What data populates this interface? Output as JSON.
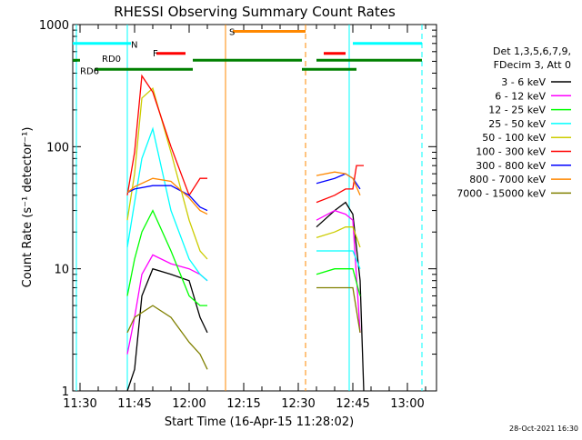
{
  "chart_data": {
    "type": "line",
    "title": "RHESSI Observing Summary Count Rates",
    "xlabel": "Start Time (16-Apr-15 11:28:02)",
    "ylabel": "Count Rate (s⁻¹ detector⁻¹)",
    "yscale": "log",
    "xlim": [
      "11:28",
      "13:08"
    ],
    "ylim": [
      1,
      1000
    ],
    "xticks": [
      "11:30",
      "11:45",
      "12:00",
      "12:15",
      "12:30",
      "12:45",
      "13:00"
    ],
    "yticks": [
      "1",
      "10",
      "100",
      "1000"
    ],
    "legend_position": "right",
    "legend_header": [
      "Det 1,3,5,6,7,9,",
      "FDecim 3, Att 0"
    ],
    "timestamp": "28-Oct-2021 16:30",
    "series": [
      {
        "name": "3 - 6 keV",
        "color": "#000000",
        "x": [
          "11:43",
          "11:45",
          "11:47",
          "11:50",
          "11:55",
          "12:00",
          "12:03",
          "12:05"
        ],
        "y": [
          1,
          1.5,
          6,
          10,
          9,
          8,
          4,
          3
        ],
        "x2": [
          "12:35",
          "12:40",
          "12:43",
          "12:45",
          "12:47",
          "12:48"
        ],
        "y2": [
          22,
          30,
          35,
          28,
          8,
          1
        ]
      },
      {
        "name": "6 - 12 keV",
        "color": "#ff00ff",
        "x": [
          "11:43",
          "11:45",
          "11:47",
          "11:50",
          "11:55",
          "12:00",
          "12:03",
          "12:05"
        ],
        "y": [
          2,
          4,
          9,
          13,
          11,
          10,
          9,
          8
        ],
        "x2": [
          "12:35",
          "12:40",
          "12:43",
          "12:45",
          "12:47"
        ],
        "y2": [
          25,
          30,
          28,
          25,
          3
        ]
      },
      {
        "name": "12 - 25 keV",
        "color": "#00ff00",
        "x": [
          "11:43",
          "11:45",
          "11:47",
          "11:50",
          "11:55",
          "12:00",
          "12:03",
          "12:05"
        ],
        "y": [
          6,
          12,
          20,
          30,
          14,
          6,
          5,
          5
        ],
        "x2": [
          "12:35",
          "12:40",
          "12:43",
          "12:45",
          "12:47"
        ],
        "y2": [
          9,
          10,
          10,
          10,
          6
        ]
      },
      {
        "name": "25 - 50 keV",
        "color": "#00ffff",
        "x": [
          "11:43",
          "11:45",
          "11:47",
          "11:50",
          "11:55",
          "12:00",
          "12:03",
          "12:05"
        ],
        "y": [
          15,
          35,
          80,
          140,
          30,
          12,
          9,
          8
        ],
        "x2": [
          "12:35",
          "12:40",
          "12:43",
          "12:45",
          "12:47"
        ],
        "y2": [
          14,
          14,
          14,
          14,
          10
        ]
      },
      {
        "name": "50 - 100 keV",
        "color": "#cccc00",
        "x": [
          "11:43",
          "11:45",
          "11:47",
          "11:50",
          "11:55",
          "12:00",
          "12:03",
          "12:05"
        ],
        "y": [
          25,
          60,
          250,
          300,
          90,
          25,
          14,
          12
        ],
        "x2": [
          "12:35",
          "12:40",
          "12:43",
          "12:45",
          "12:47"
        ],
        "y2": [
          18,
          20,
          22,
          22,
          15
        ]
      },
      {
        "name": "100 - 300 keV",
        "color": "#ff0000",
        "x": [
          "11:43",
          "11:45",
          "11:47",
          "11:50",
          "11:55",
          "12:00",
          "12:03",
          "12:05"
        ],
        "y": [
          40,
          90,
          380,
          280,
          100,
          40,
          55,
          55
        ],
        "x2": [
          "12:35",
          "12:40",
          "12:43",
          "12:45",
          "12:46",
          "12:48"
        ],
        "y2": [
          35,
          40,
          45,
          45,
          70,
          70
        ]
      },
      {
        "name": "300 - 800 keV",
        "color": "#0000ff",
        "x": [
          "11:43",
          "11:45",
          "11:50",
          "11:55",
          "12:00",
          "12:03",
          "12:05"
        ],
        "y": [
          42,
          45,
          48,
          48,
          40,
          32,
          30
        ],
        "x2": [
          "12:35",
          "12:40",
          "12:43",
          "12:45",
          "12:47"
        ],
        "y2": [
          50,
          55,
          60,
          55,
          45
        ]
      },
      {
        "name": "800 - 7000 keV",
        "color": "#ff8800",
        "x": [
          "11:43",
          "11:45",
          "11:50",
          "11:55",
          "12:00",
          "12:03",
          "12:05"
        ],
        "y": [
          42,
          47,
          55,
          52,
          38,
          30,
          28
        ],
        "x2": [
          "12:35",
          "12:40",
          "12:43",
          "12:45",
          "12:47"
        ],
        "y2": [
          58,
          62,
          60,
          55,
          40
        ]
      },
      {
        "name": "7000 - 15000 keV",
        "color": "#808000",
        "x": [
          "11:43",
          "11:45",
          "11:50",
          "11:55",
          "12:00",
          "12:03",
          "12:05"
        ],
        "y": [
          3,
          4,
          5,
          4,
          2.5,
          2,
          1.5
        ],
        "x2": [
          "12:35",
          "12:40",
          "12:43",
          "12:45",
          "12:47"
        ],
        "y2": [
          7,
          7,
          7,
          7,
          3
        ]
      }
    ],
    "annotations": [
      {
        "label": "N",
        "color": "#00ffff",
        "x_label": "11:43"
      },
      {
        "label": "F",
        "color": "#ff0000",
        "x_label": "11:49"
      },
      {
        "label": "S",
        "color": "#ff8800",
        "x_label": "12:10"
      },
      {
        "label": "RD0",
        "color": "#008000",
        "x_label": "11:35"
      },
      {
        "label": "RD6",
        "color": "#008000",
        "x_label": "11:29"
      }
    ],
    "state_bars": [
      {
        "name": "N",
        "color": "#00ffff",
        "y_level": 700,
        "intervals": [
          [
            "11:28",
            "11:44"
          ],
          [
            "12:45",
            "13:04"
          ]
        ]
      },
      {
        "name": "F",
        "color": "#ff0000",
        "y_level": 580,
        "intervals": [
          [
            "11:51",
            "11:59"
          ],
          [
            "12:37",
            "12:43"
          ]
        ]
      },
      {
        "name": "S",
        "color": "#ff8800",
        "y_level": 880,
        "intervals": [
          [
            "12:12",
            "12:32"
          ]
        ]
      },
      {
        "name": "RD0",
        "color": "#008000",
        "y_level": 510,
        "intervals": [
          [
            "11:28",
            "11:30"
          ],
          [
            "12:01",
            "12:31"
          ],
          [
            "12:35",
            "13:04"
          ]
        ]
      },
      {
        "name": "RD6",
        "color": "#008000",
        "y_level": 430,
        "intervals": [
          [
            "11:34",
            "12:01"
          ],
          [
            "12:31",
            "12:46"
          ]
        ]
      }
    ],
    "vlines": [
      {
        "x": "11:29",
        "color": "#00ffff",
        "style": "solid"
      },
      {
        "x": "11:43",
        "color": "#00ffff",
        "style": "solid"
      },
      {
        "x": "12:10",
        "color": "#ff8800",
        "style": "solid"
      },
      {
        "x": "12:32",
        "color": "#ff8800",
        "style": "dashed"
      },
      {
        "x": "12:44",
        "color": "#00ffff",
        "style": "solid"
      },
      {
        "x": "13:04",
        "color": "#00ffff",
        "style": "dashed"
      }
    ],
    "grid": false
  }
}
